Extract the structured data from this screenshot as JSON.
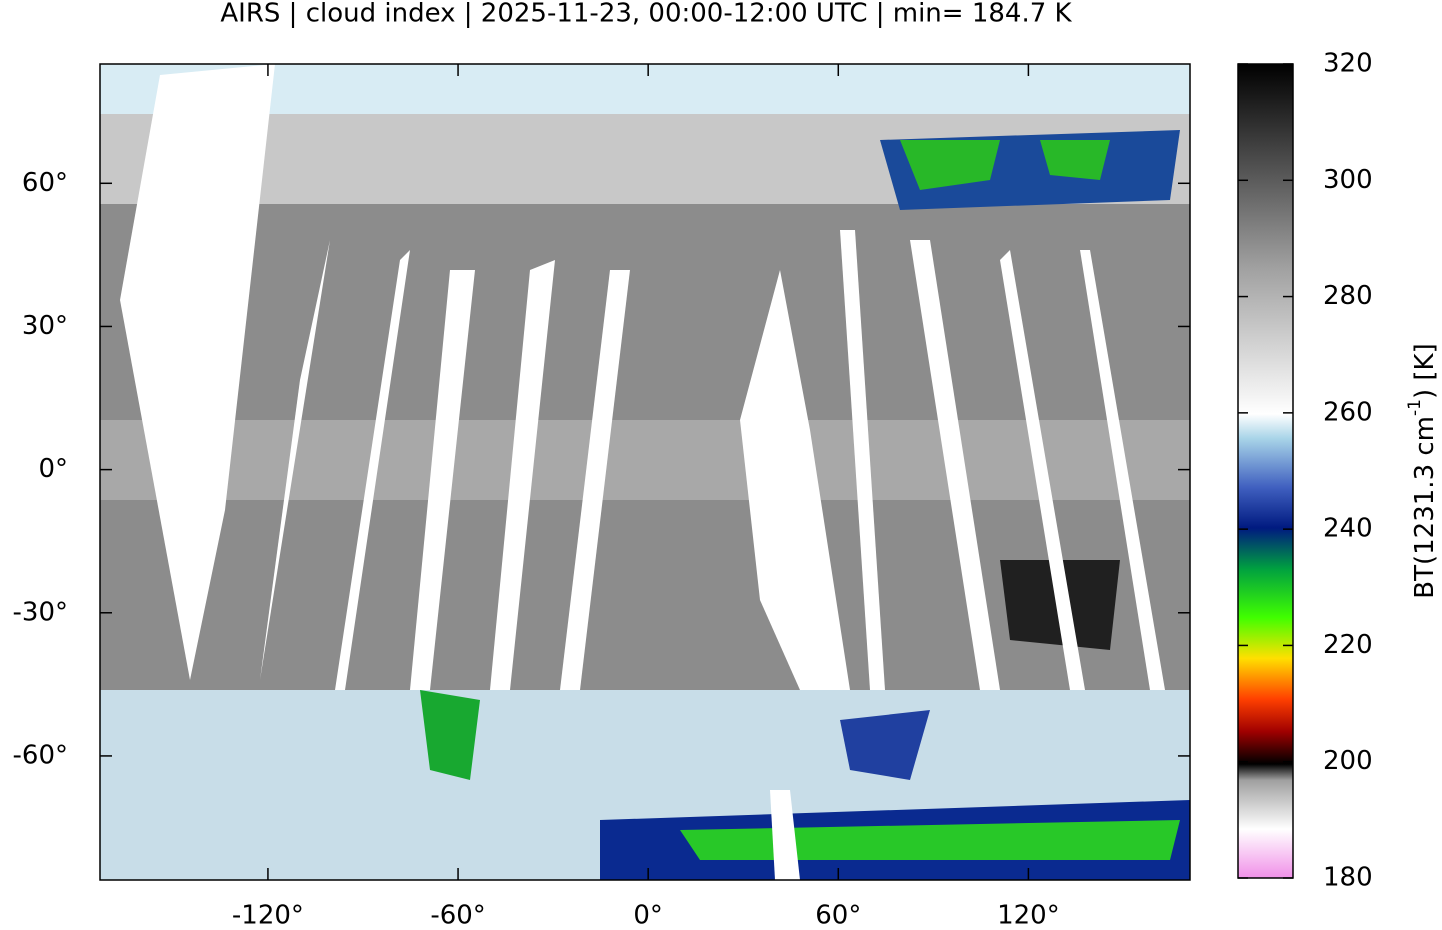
{
  "chart_data": {
    "type": "map",
    "title": "AIRS | cloud index | 2025-11-23, 00:00-12:00 UTC | min= 184.7 K",
    "xlim": [
      -173,
      171
    ],
    "ylim": [
      -86,
      85
    ],
    "xticks": [
      {
        "value": -120,
        "label": "-120°"
      },
      {
        "value": -60,
        "label": "-60°"
      },
      {
        "value": 0,
        "label": "0°"
      },
      {
        "value": 60,
        "label": "60°"
      },
      {
        "value": 120,
        "label": "120°"
      }
    ],
    "yticks": [
      {
        "value": 60,
        "label": "60°"
      },
      {
        "value": 30,
        "label": "30°"
      },
      {
        "value": 0,
        "label": "0°"
      },
      {
        "value": -30,
        "label": "-30°"
      },
      {
        "value": -60,
        "label": "-60°"
      }
    ],
    "colorbar": {
      "lim": [
        180,
        320
      ],
      "ticks": [
        180,
        200,
        220,
        240,
        260,
        280,
        300,
        320
      ],
      "label_parts": [
        "BT(1231.3 cm",
        "-1",
        ") [K]"
      ]
    }
  }
}
